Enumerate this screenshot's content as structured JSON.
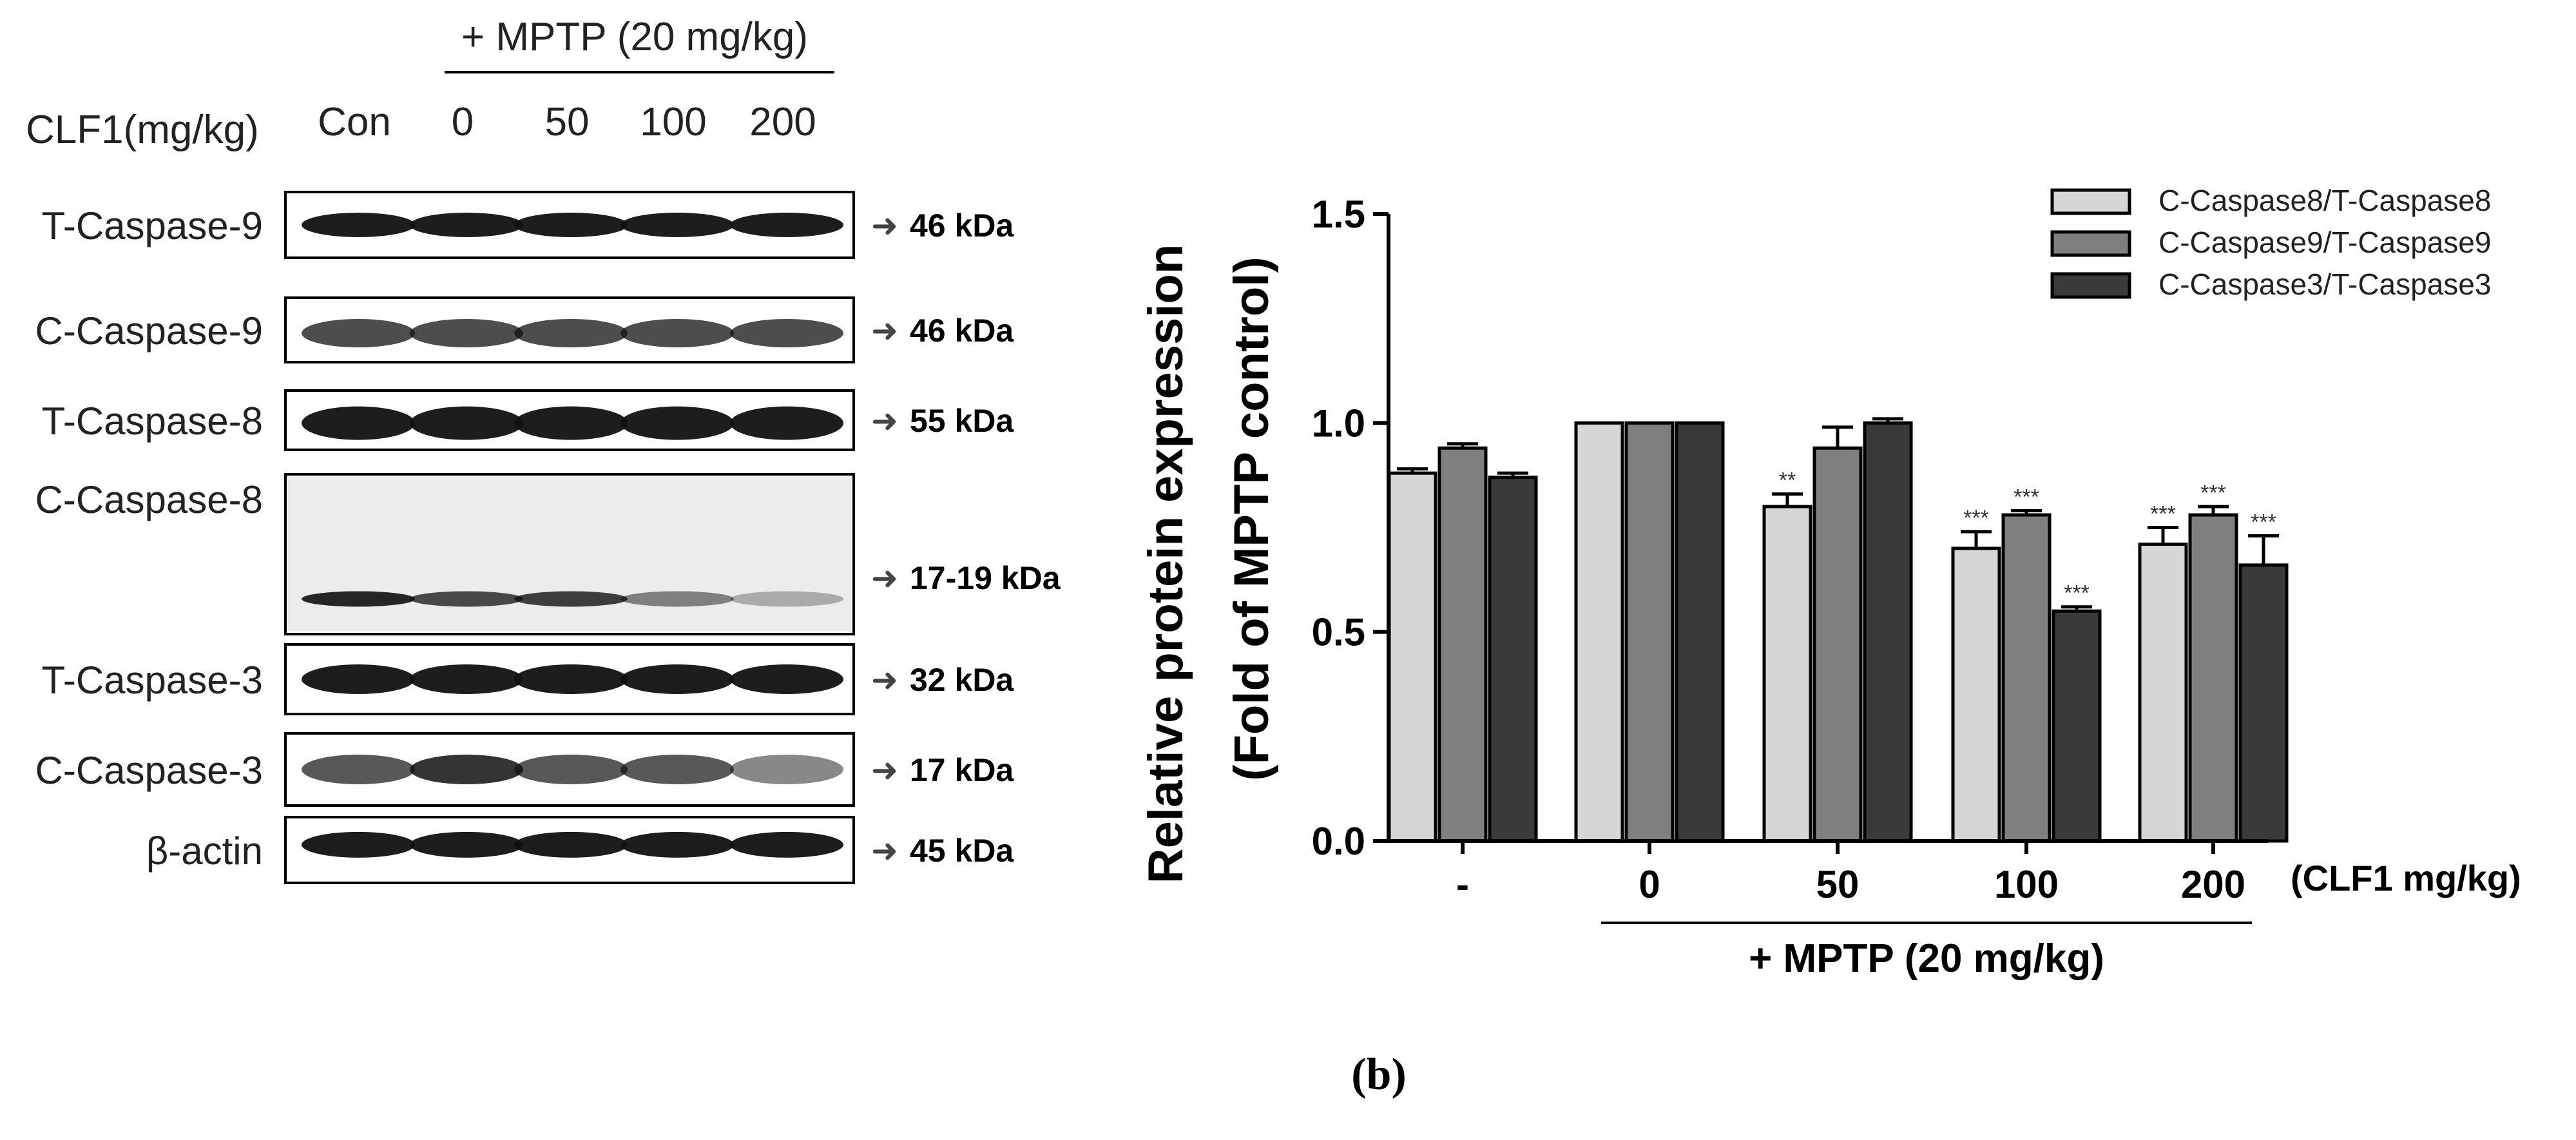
{
  "blot": {
    "mptp_header": "+ MPTP (20 mg/kg)",
    "dose_label": "CLF1(mg/kg)",
    "lanes": [
      "Con",
      "0",
      "50",
      "100",
      "200"
    ],
    "rows": [
      {
        "name": "T-Caspase-9",
        "size": "46 kDa"
      },
      {
        "name": "C-Caspase-9",
        "size": "46 kDa"
      },
      {
        "name": "T-Caspase-8",
        "size": "55 kDa"
      },
      {
        "name": "C-Caspase-8",
        "size": "17-19 kDa"
      },
      {
        "name": "T-Caspase-3",
        "size": "32 kDa"
      },
      {
        "name": "C-Caspase-3",
        "size": "17 kDa"
      },
      {
        "name": "β-actin",
        "size": "45 kDa"
      }
    ],
    "arrow_glyph": "➜"
  },
  "chart_data": {
    "type": "bar",
    "ylabel_line1": "Relative protein expression",
    "ylabel_line2": "(Fold of MPTP control)",
    "ylim": [
      0,
      1.5
    ],
    "yticks": [
      "0.0",
      "0.5",
      "1.0",
      "1.5"
    ],
    "categories": [
      "-",
      "0",
      "50",
      "100",
      "200"
    ],
    "x_unit_label": "(CLF1 mg/kg)",
    "group_label": "+ MPTP (20 mg/kg)",
    "series": [
      {
        "name": "C-Caspase8/T-Caspase8",
        "color": "#d6d6d6",
        "values": [
          0.88,
          1.0,
          0.8,
          0.7,
          0.71
        ],
        "errors": [
          0.01,
          0.0,
          0.03,
          0.04,
          0.04
        ],
        "sig": [
          "",
          "",
          "**",
          "***",
          "***"
        ]
      },
      {
        "name": "C-Caspase9/T-Caspase9",
        "color": "#7f7f7f",
        "values": [
          0.94,
          1.0,
          0.94,
          0.78,
          0.78
        ],
        "errors": [
          0.01,
          0.0,
          0.05,
          0.01,
          0.02
        ],
        "sig": [
          "",
          "",
          "",
          "***",
          "***"
        ]
      },
      {
        "name": "C-Caspase3/T-Caspase3",
        "color": "#3a3a3a",
        "values": [
          0.87,
          1.0,
          1.0,
          0.55,
          0.66
        ],
        "errors": [
          0.01,
          0.0,
          0.01,
          0.01,
          0.07
        ],
        "sig": [
          "",
          "",
          "",
          "***",
          "***"
        ]
      }
    ]
  },
  "panel_label": "(b)"
}
